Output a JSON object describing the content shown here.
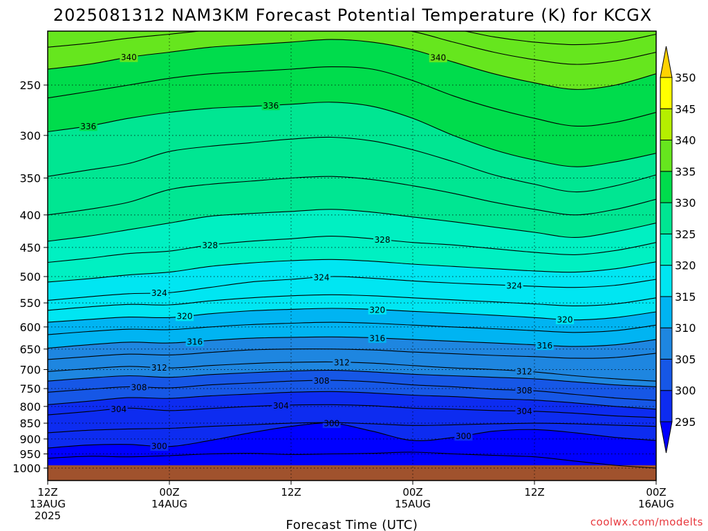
{
  "title": "2025081312 NAM3KM Forecast Potential Temperature (K) for KCGX",
  "credit": "coolwx.com/modelts",
  "chart_data": {
    "type": "heatmap",
    "title": "2025081312 NAM3KM Forecast Potential Temperature (K) for KCGX",
    "xlabel": "Forecast Time (UTC)",
    "ylabel": "",
    "x_range_hours": [
      0,
      60
    ],
    "x_ticks": [
      {
        "hour": 0,
        "lines": [
          "12Z",
          "13AUG",
          "2025"
        ]
      },
      {
        "hour": 12,
        "lines": [
          "00Z",
          "14AUG"
        ]
      },
      {
        "hour": 24,
        "lines": [
          "12Z"
        ]
      },
      {
        "hour": 36,
        "lines": [
          "00Z",
          "15AUG"
        ]
      },
      {
        "hour": 48,
        "lines": [
          "12Z"
        ]
      },
      {
        "hour": 60,
        "lines": [
          "00Z",
          "16AUG"
        ]
      }
    ],
    "y_axis": {
      "scale": "log",
      "reversed": true,
      "range_hpa": [
        1000,
        200
      ],
      "ticks": [
        250,
        300,
        350,
        400,
        450,
        500,
        550,
        600,
        650,
        700,
        750,
        800,
        850,
        900,
        950,
        1000
      ]
    },
    "grid": true,
    "colorbar": {
      "levels": [
        295,
        300,
        305,
        310,
        315,
        320,
        325,
        330,
        335,
        340,
        345,
        350
      ],
      "colors": [
        "#0000ff",
        "#0d2cf0",
        "#1657e6",
        "#1e86e0",
        "#00b4f2",
        "#00e6f2",
        "#00f0c2",
        "#00e692",
        "#00dc4c",
        "#66e61e",
        "#b5ee00",
        "#ffff00",
        "#ffd200"
      ]
    },
    "fill_band_colors": [
      "#0000d8",
      "#0000ff",
      "#0d2cf0",
      "#1657e6",
      "#1e86e0",
      "#00b4f2",
      "#00e6f2",
      "#00f0c2",
      "#00e692",
      "#00dc4c",
      "#66e61e",
      "#b5ee00",
      "#ffff00",
      "#ffd200"
    ],
    "contours": [
      {
        "theta": 298,
        "p": [
          965,
          958,
          960,
          956,
          950,
          948,
          952,
          950,
          948,
          944,
          950,
          955,
          960,
          975,
          990,
          1000
        ],
        "labeled": false
      },
      {
        "theta": 300,
        "p": [
          930,
          920,
          918,
          925,
          905,
          880,
          860,
          850,
          875,
          905,
          895,
          875,
          870,
          880,
          895,
          905
        ],
        "labeled": true,
        "label_hours": [
          11,
          28,
          41
        ]
      },
      {
        "theta": 302,
        "p": [
          880,
          872,
          868,
          866,
          860,
          855,
          850,
          848,
          852,
          857,
          855,
          852,
          850,
          852,
          856,
          860
        ],
        "labeled": false
      },
      {
        "theta": 304,
        "p": [
          825,
          815,
          805,
          812,
          806,
          800,
          796,
          795,
          798,
          805,
          808,
          812,
          814,
          820,
          828,
          833
        ],
        "labeled": true,
        "label_hours": [
          7,
          23,
          47
        ]
      },
      {
        "theta": 306,
        "p": [
          795,
          785,
          775,
          777,
          770,
          765,
          760,
          758,
          762,
          768,
          772,
          778,
          782,
          790,
          800,
          808
        ],
        "labeled": false
      },
      {
        "theta": 308,
        "p": [
          760,
          752,
          745,
          748,
          740,
          735,
          730,
          728,
          732,
          740,
          745,
          752,
          756,
          766,
          776,
          783
        ],
        "labeled": true,
        "label_hours": [
          9,
          27,
          47
        ]
      },
      {
        "theta": 310,
        "p": [
          730,
          722,
          716,
          720,
          713,
          708,
          704,
          702,
          706,
          712,
          716,
          720,
          724,
          732,
          740,
          745
        ],
        "labeled": false
      },
      {
        "theta": 312,
        "p": [
          705,
          698,
          692,
          696,
          690,
          685,
          682,
          681,
          684,
          690,
          696,
          700,
          706,
          716,
          724,
          730
        ],
        "labeled": true,
        "label_hours": [
          11,
          29,
          47
        ]
      },
      {
        "theta": 314,
        "p": [
          675,
          668,
          662,
          664,
          658,
          652,
          650,
          650,
          652,
          657,
          661,
          665,
          668,
          672,
          670,
          660
        ],
        "labeled": false
      },
      {
        "theta": 316,
        "p": [
          648,
          640,
          634,
          636,
          630,
          625,
          623,
          622,
          624,
          628,
          632,
          636,
          640,
          644,
          640,
          628
        ],
        "labeled": true,
        "label_hours": [
          14.5,
          32.5,
          49
        ]
      },
      {
        "theta": 318,
        "p": [
          617,
          610,
          605,
          606,
          600,
          595,
          592,
          590,
          592,
          596,
          600,
          604,
          608,
          612,
          608,
          596
        ],
        "labeled": false
      },
      {
        "theta": 320,
        "p": [
          590,
          584,
          579,
          580,
          572,
          566,
          563,
          561,
          563,
          567,
          571,
          575,
          580,
          585,
          580,
          568
        ],
        "labeled": true,
        "label_hours": [
          13.5,
          32.5,
          51
        ]
      },
      {
        "theta": 322,
        "p": [
          565,
          558,
          553,
          554,
          546,
          540,
          536,
          534,
          536,
          540,
          544,
          548,
          552,
          556,
          552,
          540
        ],
        "labeled": false
      },
      {
        "theta": 324,
        "p": [
          545,
          538,
          532,
          530,
          520,
          510,
          505,
          500,
          503,
          508,
          512,
          515,
          518,
          520,
          516,
          505
        ],
        "labeled": true,
        "label_hours": [
          11,
          27,
          46
        ]
      },
      {
        "theta": 326,
        "p": [
          510,
          504,
          497,
          492,
          482,
          476,
          472,
          470,
          473,
          478,
          482,
          486,
          490,
          492,
          486,
          474
        ],
        "labeled": false
      },
      {
        "theta": 328,
        "p": [
          475,
          468,
          460,
          456,
          446,
          440,
          436,
          432,
          436,
          442,
          446,
          452,
          458,
          462,
          455,
          442
        ],
        "labeled": true,
        "label_hours": [
          16,
          33
        ]
      },
      {
        "theta": 330,
        "p": [
          440,
          432,
          422,
          412,
          402,
          398,
          395,
          392,
          396,
          403,
          410,
          418,
          426,
          434,
          425,
          412
        ],
        "labeled": false
      },
      {
        "theta": 332,
        "p": [
          400,
          392,
          382,
          365,
          358,
          354,
          350,
          348,
          352,
          360,
          370,
          382,
          392,
          400,
          392,
          378
        ],
        "labeled": false
      },
      {
        "theta": 334,
        "p": [
          348,
          340,
          332,
          318,
          312,
          308,
          304,
          302,
          306,
          316,
          330,
          346,
          358,
          368,
          360,
          346
        ],
        "labeled": false
      },
      {
        "theta": 336,
        "p": [
          296,
          290,
          282,
          276,
          272,
          270,
          268,
          266,
          270,
          282,
          300,
          316,
          328,
          336,
          330,
          320
        ],
        "labeled": true,
        "label_hours": [
          4,
          22
        ]
      },
      {
        "theta": 338,
        "p": [
          262,
          256,
          250,
          244,
          240,
          238,
          236,
          234,
          236,
          246,
          260,
          272,
          282,
          290,
          286,
          276
        ],
        "labeled": false
      },
      {
        "theta": 340,
        "p": [
          236,
          232,
          226,
          222,
          218,
          216,
          214,
          212,
          214,
          220,
          230,
          240,
          248,
          254,
          250,
          240
        ],
        "labeled": true,
        "label_hours": [
          8,
          38.5
        ]
      },
      {
        "theta": 342,
        "p": [
          218,
          215,
          211,
          208,
          205,
          204,
          202,
          201,
          202,
          206,
          214,
          222,
          228,
          232,
          229,
          222
        ],
        "labeled": false
      },
      {
        "theta": 344,
        "p": [
          205,
          203,
          201,
          200,
          199,
          198,
          197,
          197,
          198,
          200,
          204,
          210,
          214,
          216,
          214,
          208
        ],
        "labeled": true,
        "label_hours": [
          14
        ]
      }
    ]
  }
}
